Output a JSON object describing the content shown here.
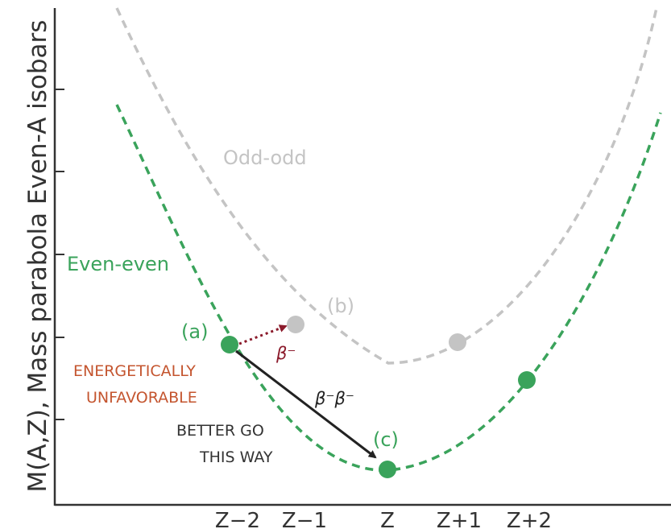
{
  "colors": {
    "even_even": "#3aa35b",
    "odd_odd": "#c4c4c4",
    "single_beta": "#8b1a2b",
    "double_beta": "#222222",
    "warning": "#c4552f",
    "text": "#333333"
  },
  "chart_data": {
    "type": "scatter",
    "ylabel": "M(A,Z),  Mass parabola Even-A isobars",
    "x_ticks": [
      "Z−2",
      "Z−1",
      "Z",
      "Z+1",
      "Z+2"
    ],
    "curves": [
      {
        "name": "Odd-odd",
        "style": "dashed",
        "color": "#c4c4c4"
      },
      {
        "name": "Even-even",
        "style": "dashed",
        "color": "#3aa35b"
      }
    ],
    "points": [
      {
        "label": "(a)",
        "x": "Z−2",
        "curve": "Even-even",
        "color": "#3aa35b"
      },
      {
        "label": "(b)",
        "x": "Z−1",
        "curve": "Odd-odd",
        "color": "#c4c4c4"
      },
      {
        "label": "",
        "x": "Z+1",
        "curve": "Odd-odd",
        "color": "#c4c4c4"
      },
      {
        "label": "(c)",
        "x": "Z",
        "curve": "Even-even",
        "color": "#3aa35b"
      },
      {
        "label": "",
        "x": "Z+2",
        "curve": "Even-even",
        "color": "#3aa35b"
      }
    ],
    "arrows": [
      {
        "label": "β⁻",
        "from": "(a)",
        "to": "(b)",
        "style": "dotted"
      },
      {
        "label": "β⁻β⁻",
        "from": "(a)",
        "to": "(c)",
        "style": "solid"
      }
    ],
    "annotations": {
      "unfavorable": [
        "ENERGETICALLY",
        "UNFAVORABLE"
      ],
      "better": [
        "BETTER GO",
        "THIS WAY"
      ]
    },
    "grid": false
  }
}
